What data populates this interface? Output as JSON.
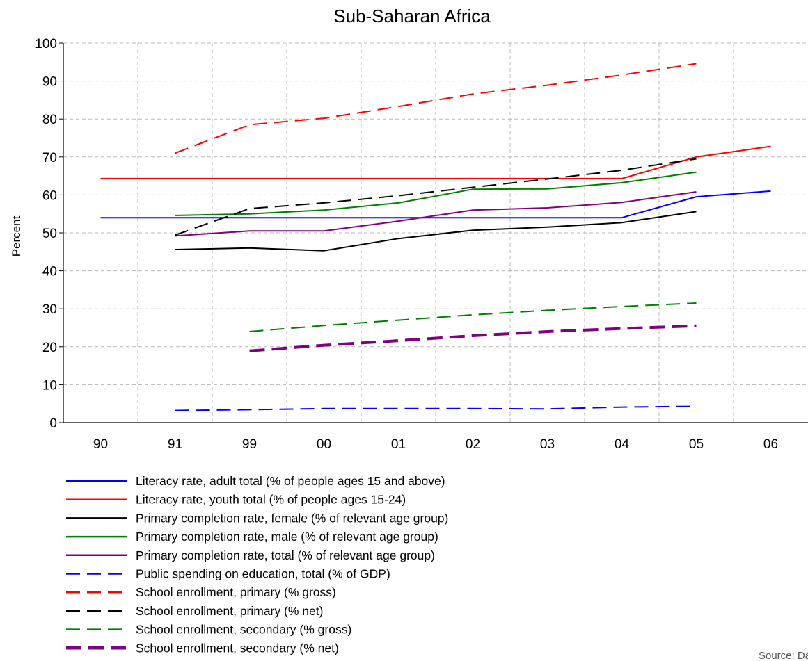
{
  "chart_data": {
    "type": "line",
    "title": "Sub-Saharan Africa",
    "xlabel": "",
    "ylabel": "Percent",
    "categories": [
      "90",
      "91",
      "99",
      "00",
      "01",
      "02",
      "03",
      "04",
      "05",
      "06"
    ],
    "ylim": [
      0,
      100
    ],
    "yticks": [
      0,
      10,
      20,
      30,
      40,
      50,
      60,
      70,
      80,
      90,
      100
    ],
    "grid": true,
    "legend_position": "bottom",
    "series": [
      {
        "name": "Literacy rate, adult total (% of people ages 15 and above)",
        "color": "#0000ff",
        "dash": "solid",
        "values": [
          54.0,
          54.0,
          54.0,
          54.0,
          54.0,
          54.0,
          54.0,
          54.0,
          59.5,
          61.0
        ]
      },
      {
        "name": "Literacy rate, youth total (% of people ages 15-24)",
        "color": "#ff0000",
        "dash": "solid",
        "values": [
          64.3,
          64.3,
          64.3,
          64.3,
          64.3,
          64.3,
          64.3,
          64.3,
          70.0,
          72.8
        ]
      },
      {
        "name": "Primary completion rate, female (% of relevant age group)",
        "color": "#000000",
        "dash": "solid",
        "values": [
          null,
          45.6,
          46.0,
          45.3,
          48.5,
          50.7,
          51.5,
          52.7,
          55.6,
          null
        ]
      },
      {
        "name": "Primary completion rate, male (% of relevant age group)",
        "color": "#008000",
        "dash": "solid",
        "values": [
          null,
          54.6,
          55.0,
          56.0,
          57.9,
          61.5,
          61.6,
          63.2,
          66.0,
          null
        ]
      },
      {
        "name": "Primary completion rate, total (% of relevant age group)",
        "color": "#800080",
        "dash": "solid",
        "values": [
          null,
          49.2,
          50.5,
          50.5,
          53.1,
          56.0,
          56.6,
          58.0,
          60.8,
          null
        ]
      },
      {
        "name": "Public spending on education, total (% of GDP)",
        "color": "#0000ff",
        "dash": "dashed",
        "values": [
          null,
          3.2,
          3.4,
          3.7,
          3.7,
          3.7,
          3.6,
          4.1,
          4.3,
          null
        ]
      },
      {
        "name": "School enrollment, primary (% gross)",
        "color": "#ff0000",
        "dash": "dashed",
        "values": [
          null,
          71.0,
          78.5,
          80.2,
          83.3,
          86.6,
          88.9,
          91.6,
          94.6,
          null
        ]
      },
      {
        "name": "School enrollment, primary (% net)",
        "color": "#000000",
        "dash": "dashed",
        "values": [
          null,
          49.4,
          56.4,
          57.9,
          59.8,
          62.0,
          64.2,
          66.5,
          69.5,
          null
        ]
      },
      {
        "name": "School enrollment, secondary (% gross)",
        "color": "#008000",
        "dash": "dashed",
        "values": [
          null,
          null,
          24.0,
          25.6,
          27.0,
          28.4,
          29.6,
          30.6,
          31.5,
          null
        ]
      },
      {
        "name": "School enrollment, secondary (% net)",
        "color": "#800080",
        "dash": "dashed-thick",
        "values": [
          null,
          null,
          18.9,
          20.4,
          21.6,
          22.9,
          24.0,
          24.8,
          25.5,
          null
        ]
      }
    ]
  },
  "source_note": "Source: Data from The World Bank"
}
